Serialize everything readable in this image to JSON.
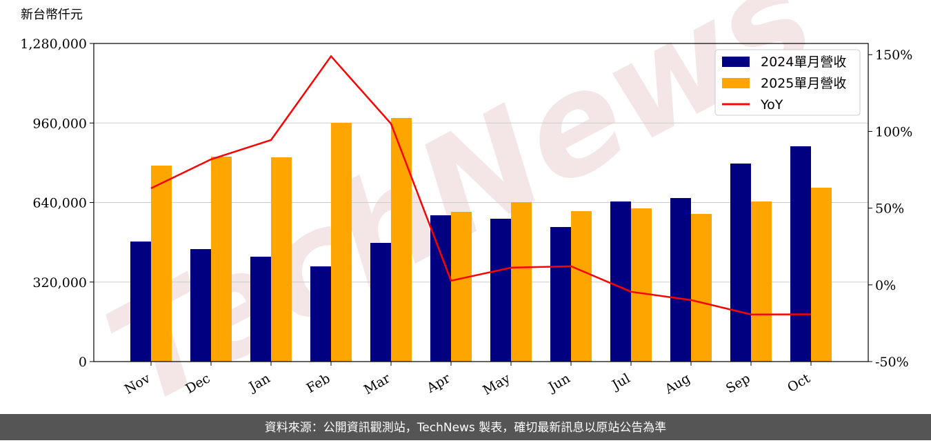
{
  "chart_data": {
    "type": "bar_line",
    "y_label": "新台幣仟元",
    "watermark": "TechNews",
    "categories": [
      "Nov",
      "Dec",
      "Jan",
      "Feb",
      "Mar",
      "Apr",
      "May",
      "Jun",
      "Jul",
      "Aug",
      "Sep",
      "Oct"
    ],
    "series": [
      {
        "name": "2024單月營收",
        "color": "#000080",
        "type": "bar",
        "values": [
          483000,
          452600,
          422000,
          383000,
          477600,
          588600,
          574800,
          541400,
          644200,
          658000,
          796900,
          866300
        ]
      },
      {
        "name": "2025單月營收",
        "color": "#ffa500",
        "type": "bar",
        "values": [
          788500,
          824600,
          821900,
          960700,
          980100,
          602500,
          641400,
          605300,
          616400,
          594200,
          644200,
          699700
        ]
      },
      {
        "name": "YoY",
        "color": "#ff0000",
        "type": "line",
        "axis": "y2",
        "values": [
          62.9,
          81.8,
          94.4,
          149,
          105,
          2.7,
          11.2,
          12.1,
          -4.5,
          -9.9,
          -19.3,
          -19.2
        ]
      }
    ],
    "ylim": [
      0,
      1280000
    ],
    "yticks": [
      0,
      {
        "value": 320000,
        "label": "320,000"
      },
      {
        "value": 640000,
        "label": "640,000"
      },
      {
        "value": 960000,
        "label": "960,000"
      },
      {
        "value": 1280000,
        "label": "1,280,000"
      }
    ],
    "y2lim": [
      -50,
      157.3
    ],
    "y2ticks": [
      {
        "value": -50,
        "label": "-50%"
      },
      {
        "value": 0,
        "label": "0%"
      },
      {
        "value": 50,
        "label": "50%"
      },
      {
        "value": 100,
        "label": "100%"
      },
      {
        "value": 150,
        "label": "150%"
      }
    ],
    "grid": true,
    "legend": "upper right",
    "footer": "資料來源：公開資訊觀測站，TechNews 製表，確切最新訊息以原站公告為準"
  }
}
